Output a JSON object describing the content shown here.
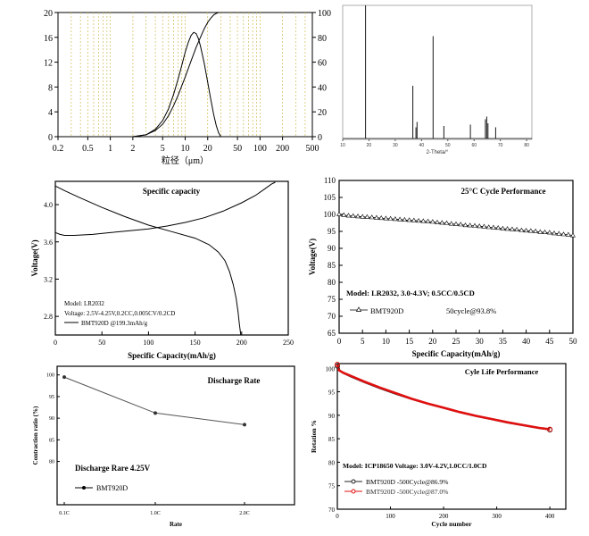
{
  "chart_data": [
    {
      "id": "psd",
      "type": "line",
      "xlabel": "粒径（μm）",
      "x_ticks": [
        "0.2",
        "0.5",
        "1",
        "2",
        "5",
        "10",
        "20",
        "50",
        "100",
        "200",
        "500"
      ],
      "y_left_ticks": [
        "0",
        "4",
        "8",
        "12",
        "16",
        "20"
      ],
      "y_right_ticks": [
        "0",
        "20",
        "40",
        "60",
        "80",
        "100"
      ],
      "xscale": "log",
      "xlim": [
        0.2,
        500
      ],
      "ylim_left": [
        0,
        20
      ],
      "ylim_right": [
        0,
        100
      ],
      "grid": "vertical dashed",
      "colors": {
        "grid": "#d4c46a",
        "line": "#000000"
      },
      "series": [
        {
          "axis": "left",
          "x": [
            2,
            3,
            4,
            5,
            6,
            7,
            8,
            9,
            10,
            11,
            12,
            13,
            14,
            15,
            16,
            18,
            20,
            22,
            24,
            26,
            28,
            30
          ],
          "y": [
            0,
            0.3,
            1.2,
            2.6,
            4.5,
            6.8,
            9.2,
            11.5,
            13.6,
            15.2,
            16.3,
            16.8,
            16.6,
            15.8,
            14.6,
            11.8,
            8.8,
            6.0,
            3.6,
            1.8,
            0.6,
            0
          ]
        },
        {
          "axis": "right",
          "x": [
            2,
            3,
            4,
            5,
            6,
            7,
            8,
            10,
            12,
            14,
            16,
            18,
            20,
            22,
            24,
            26,
            28,
            30
          ],
          "y": [
            0,
            1.5,
            5,
            10,
            17,
            25,
            33,
            48,
            61,
            72,
            80,
            87,
            92,
            95.5,
            98,
            99.3,
            100,
            100
          ]
        }
      ]
    },
    {
      "id": "xrd",
      "type": "line",
      "xlabel": "2-Theta/°",
      "x_ticks": [
        "10",
        "20",
        "30",
        "40",
        "50",
        "60",
        "70",
        "80"
      ],
      "xlim": [
        10,
        82
      ],
      "ylim": [
        0,
        100
      ],
      "colors": {
        "line": "#1a1a1a",
        "axis": "#999999"
      },
      "peaks": [
        {
          "x": 18.7,
          "h": 100
        },
        {
          "x": 36.7,
          "h": 40
        },
        {
          "x": 37.9,
          "h": 9
        },
        {
          "x": 38.3,
          "h": 13
        },
        {
          "x": 44.4,
          "h": 77
        },
        {
          "x": 48.5,
          "h": 10
        },
        {
          "x": 58.6,
          "h": 11
        },
        {
          "x": 64.3,
          "h": 15
        },
        {
          "x": 64.8,
          "h": 17
        },
        {
          "x": 65.3,
          "h": 12
        },
        {
          "x": 68.2,
          "h": 9
        }
      ]
    },
    {
      "id": "specific_capacity",
      "type": "line",
      "title": "Specific capacity",
      "xlabel": "Specific Capacity(mAh/g)",
      "ylabel": "Voltage(V)",
      "x_ticks": [
        "0",
        "50",
        "100",
        "150",
        "200",
        "250"
      ],
      "y_ticks": [
        "2.8",
        "3.2",
        "3.6",
        "4.0"
      ],
      "xlim": [
        0,
        250
      ],
      "ylim": [
        2.6,
        4.25
      ],
      "annotation": [
        "Model: LR2032",
        "Voltage: 2.5V-4.25V,0.2CC,0.005CV/0.2CD"
      ],
      "legend": "BMT920D  @199.3mAh/g",
      "series": [
        {
          "name": "charge",
          "x": [
            0,
            5,
            10,
            20,
            40,
            60,
            80,
            100,
            120,
            140,
            160,
            180,
            200,
            215,
            225,
            232,
            236
          ],
          "y": [
            3.7,
            3.68,
            3.67,
            3.67,
            3.68,
            3.7,
            3.72,
            3.74,
            3.77,
            3.81,
            3.86,
            3.93,
            4.02,
            4.1,
            4.17,
            4.22,
            4.24
          ]
        },
        {
          "name": "discharge",
          "x": [
            0,
            10,
            25,
            50,
            75,
            100,
            125,
            150,
            165,
            175,
            182,
            187,
            191,
            194,
            196,
            197.5,
            199
          ],
          "y": [
            4.2,
            4.15,
            4.08,
            3.97,
            3.87,
            3.78,
            3.71,
            3.64,
            3.57,
            3.49,
            3.4,
            3.28,
            3.14,
            3.0,
            2.86,
            2.72,
            2.6
          ]
        }
      ]
    },
    {
      "id": "cycle_25c",
      "type": "line",
      "title": "25°C Cycle Performance",
      "xlabel": "Specific Capacity(mAh/g)",
      "ylabel": "Voltage(V)",
      "x_ticks": [
        "0",
        "5",
        "10",
        "15",
        "20",
        "25",
        "30",
        "35",
        "40",
        "45",
        "50"
      ],
      "y_ticks": [
        "65",
        "70",
        "75",
        "80",
        "85",
        "90",
        "95",
        "100",
        "105",
        "110"
      ],
      "xlim": [
        0,
        50
      ],
      "ylim": [
        65,
        110
      ],
      "annotation": "Model: LR2032, 3.0-4.3V; 0.5CC/0.5CD",
      "legend": {
        "marker": "BMT920D",
        "value": "50cycle@93.8%"
      },
      "series": [
        {
          "name": "BMT920D",
          "x": [
            0,
            1,
            2,
            3,
            4,
            5,
            6,
            7,
            8,
            9,
            10,
            11,
            12,
            13,
            14,
            15,
            16,
            17,
            18,
            19,
            20,
            21,
            22,
            23,
            24,
            25,
            26,
            27,
            28,
            29,
            30,
            31,
            32,
            33,
            34,
            35,
            36,
            37,
            38,
            39,
            40,
            41,
            42,
            43,
            44,
            45,
            46,
            47,
            48,
            49,
            50
          ],
          "y": [
            100.0,
            99.8,
            99.6,
            99.5,
            99.4,
            99.3,
            99.2,
            99.1,
            99.0,
            98.9,
            98.8,
            98.7,
            98.6,
            98.5,
            98.4,
            98.3,
            98.2,
            98.1,
            98.0,
            97.9,
            97.8,
            97.6,
            97.5,
            97.4,
            97.2,
            97.1,
            97.0,
            96.8,
            96.7,
            96.6,
            96.5,
            96.4,
            96.2,
            96.1,
            96.0,
            95.8,
            95.7,
            95.6,
            95.5,
            95.3,
            95.2,
            95.1,
            95.0,
            94.8,
            94.7,
            94.6,
            94.4,
            94.3,
            94.1,
            94.0,
            93.8
          ]
        }
      ]
    },
    {
      "id": "discharge_rate",
      "type": "line",
      "title": "Discharge Rate",
      "xlabel": "Rate",
      "ylabel": "Contraction ratio (%)",
      "categories": [
        "0.1C",
        "1.0C",
        "2.0C"
      ],
      "y_ticks": [
        "80",
        "85",
        "90",
        "95",
        "100"
      ],
      "ylim": [
        70,
        102
      ],
      "annotation": "Discharge Rare 4.25V",
      "legend": "BMT920D",
      "series": [
        {
          "name": "BMT920D",
          "values": [
            99.5,
            91.2,
            88.5
          ]
        }
      ]
    },
    {
      "id": "cycle_life",
      "type": "line",
      "title": "Cyle Life Performance",
      "xlabel": "Cycle number",
      "ylabel": "Retation %",
      "x_ticks": [
        "0",
        "100",
        "200",
        "300",
        "400"
      ],
      "y_ticks": [
        "70",
        "75",
        "80",
        "85",
        "90",
        "95",
        "100"
      ],
      "xlim": [
        0,
        430
      ],
      "ylim": [
        70,
        101
      ],
      "annotation": "Model: ICP18650 Voltage: 3.0V-4.2V,1.0CC/1.0CD",
      "legend": [
        "BMT920D -500Cycle@86.9%",
        "BMT920D -500Cycle@87.0%"
      ],
      "colors": {
        "s1": "#222222",
        "s2": "#e01010"
      },
      "series": [
        {
          "name": "BMT920D -500Cycle@86.9%",
          "x": [
            0,
            3,
            10,
            25,
            50,
            80,
            110,
            140,
            170,
            200,
            230,
            260,
            290,
            320,
            350,
            380,
            400
          ],
          "y": [
            100.5,
            99.8,
            99.0,
            98.2,
            97.0,
            95.7,
            94.5,
            93.4,
            92.4,
            91.5,
            90.6,
            89.8,
            89.1,
            88.4,
            87.8,
            87.2,
            86.9
          ]
        },
        {
          "name": "BMT920D -500Cycle@87.0%",
          "x": [
            0,
            3,
            10,
            25,
            50,
            80,
            110,
            140,
            170,
            200,
            230,
            260,
            290,
            320,
            350,
            380,
            400
          ],
          "y": [
            100.8,
            99.6,
            99.1,
            98.4,
            97.2,
            95.9,
            94.7,
            93.5,
            92.5,
            91.6,
            90.7,
            89.9,
            89.2,
            88.5,
            87.9,
            87.3,
            87.0
          ]
        }
      ]
    }
  ]
}
